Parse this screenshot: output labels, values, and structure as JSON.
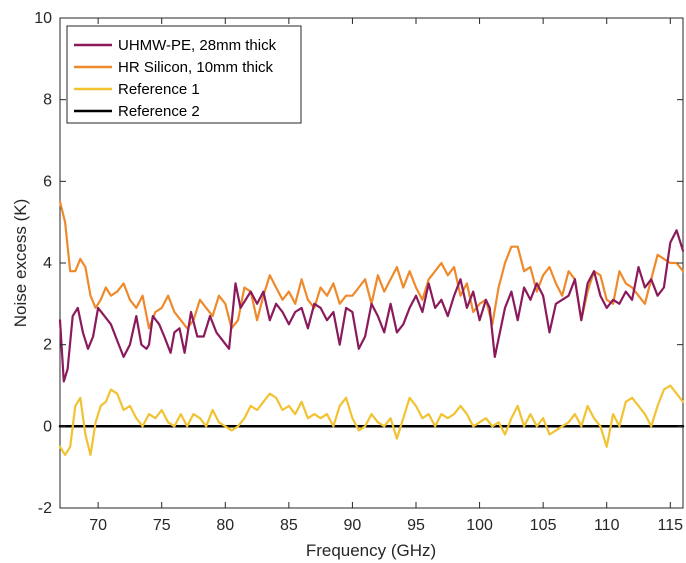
{
  "chart_data": {
    "type": "line",
    "xlabel": "Frequency (GHz)",
    "ylabel": "Noise excess (K)",
    "xlim": [
      67,
      116
    ],
    "ylim": [
      -2,
      10
    ],
    "xticks": [
      70,
      75,
      80,
      85,
      90,
      95,
      100,
      105,
      110,
      115
    ],
    "yticks": [
      -2,
      0,
      2,
      4,
      6,
      8,
      10
    ],
    "xtick_labels": [
      "70",
      "75",
      "80",
      "85",
      "90",
      "95",
      "100",
      "105",
      "110",
      "115"
    ],
    "ytick_labels": [
      "-2",
      "0",
      "2",
      "4",
      "6",
      "8",
      "10"
    ],
    "grid": false,
    "legend_position": "top-left",
    "series": [
      {
        "name": "UHMW-PE, 28mm thick",
        "color": "#8b1a5c",
        "x": [
          67.0,
          67.3,
          67.6,
          68.0,
          68.4,
          68.8,
          69.2,
          69.6,
          70.0,
          70.5,
          71.0,
          71.5,
          72.0,
          72.5,
          73.0,
          73.4,
          73.8,
          74.0,
          74.3,
          74.8,
          75.2,
          75.7,
          76.0,
          76.4,
          76.8,
          77.3,
          77.8,
          78.3,
          78.8,
          79.3,
          79.8,
          80.3,
          80.8,
          81.2,
          81.6,
          82.0,
          82.5,
          83.0,
          83.5,
          84.0,
          84.5,
          85.0,
          85.5,
          86.0,
          86.5,
          87.0,
          87.5,
          88.0,
          88.5,
          89.0,
          89.5,
          90.0,
          90.5,
          91.0,
          91.5,
          92.0,
          92.5,
          93.0,
          93.5,
          94.0,
          94.5,
          95.0,
          95.5,
          96.0,
          96.5,
          97.0,
          97.5,
          98.0,
          98.5,
          99.0,
          99.5,
          100.0,
          100.5,
          100.8,
          101.2,
          101.6,
          102.0,
          102.5,
          103.0,
          103.5,
          104.0,
          104.5,
          105.0,
          105.5,
          106.0,
          106.5,
          107.0,
          107.5,
          108.0,
          108.5,
          109.0,
          109.5,
          110.0,
          110.5,
          111.0,
          111.5,
          112.0,
          112.5,
          113.0,
          113.5,
          114.0,
          114.5,
          115.0,
          115.5,
          116.0
        ],
        "values": [
          2.6,
          1.1,
          1.4,
          2.7,
          2.9,
          2.3,
          1.9,
          2.2,
          2.9,
          2.7,
          2.5,
          2.1,
          1.7,
          2.0,
          2.7,
          2.0,
          1.9,
          2.0,
          2.7,
          2.5,
          2.2,
          1.8,
          2.3,
          2.4,
          1.8,
          2.8,
          2.2,
          2.2,
          2.7,
          2.3,
          2.1,
          1.9,
          3.5,
          2.9,
          3.1,
          3.3,
          3.0,
          3.3,
          2.6,
          3.0,
          2.8,
          2.5,
          2.8,
          2.9,
          2.4,
          3.0,
          2.9,
          2.6,
          2.8,
          2.0,
          2.9,
          2.8,
          1.9,
          2.2,
          3.0,
          2.7,
          2.3,
          3.0,
          2.3,
          2.5,
          2.9,
          3.2,
          2.8,
          3.5,
          2.9,
          3.1,
          2.7,
          3.2,
          3.6,
          2.9,
          3.3,
          2.6,
          3.1,
          2.9,
          1.7,
          2.3,
          2.9,
          3.3,
          2.6,
          3.4,
          3.1,
          3.5,
          3.2,
          2.3,
          3.0,
          3.1,
          3.2,
          3.6,
          2.6,
          3.5,
          3.8,
          3.2,
          2.9,
          3.1,
          3.0,
          3.3,
          3.1,
          3.9,
          3.4,
          3.6,
          3.2,
          3.4,
          4.5,
          4.8,
          4.3
        ]
      },
      {
        "name": "HR Silicon, 10mm thick",
        "color": "#ee8a2b",
        "x": [
          67.0,
          67.4,
          67.8,
          68.2,
          68.6,
          69.0,
          69.4,
          69.8,
          70.2,
          70.6,
          71.0,
          71.5,
          72.0,
          72.5,
          73.0,
          73.5,
          74.0,
          74.5,
          75.0,
          75.5,
          76.0,
          76.5,
          77.0,
          77.5,
          78.0,
          78.5,
          79.0,
          79.5,
          80.0,
          80.5,
          81.0,
          81.5,
          82.0,
          82.5,
          83.0,
          83.5,
          84.0,
          84.5,
          85.0,
          85.5,
          86.0,
          86.5,
          87.0,
          87.5,
          88.0,
          88.5,
          89.0,
          89.5,
          90.0,
          90.5,
          91.0,
          91.5,
          92.0,
          92.5,
          93.0,
          93.5,
          94.0,
          94.5,
          95.0,
          95.5,
          96.0,
          96.5,
          97.0,
          97.5,
          98.0,
          98.5,
          99.0,
          99.5,
          100.0,
          100.5,
          101.0,
          101.5,
          102.0,
          102.5,
          103.0,
          103.5,
          104.0,
          104.5,
          105.0,
          105.5,
          106.0,
          106.5,
          107.0,
          107.5,
          108.0,
          108.5,
          109.0,
          109.5,
          110.0,
          110.5,
          111.0,
          111.5,
          112.0,
          112.5,
          113.0,
          113.5,
          114.0,
          114.5,
          115.0,
          115.5,
          116.0
        ],
        "values": [
          5.5,
          5.0,
          3.8,
          3.8,
          4.1,
          3.9,
          3.2,
          2.9,
          3.1,
          3.4,
          3.2,
          3.3,
          3.5,
          3.1,
          2.9,
          3.2,
          2.4,
          2.8,
          2.9,
          3.2,
          2.8,
          2.6,
          2.4,
          2.6,
          3.1,
          2.9,
          2.7,
          3.2,
          3.0,
          2.4,
          2.6,
          3.4,
          3.3,
          2.6,
          3.2,
          3.7,
          3.4,
          3.1,
          3.3,
          3.0,
          3.6,
          3.1,
          2.9,
          3.4,
          3.2,
          3.5,
          3.0,
          3.2,
          3.2,
          3.4,
          3.6,
          3.0,
          3.7,
          3.3,
          3.6,
          3.9,
          3.4,
          3.8,
          3.4,
          3.1,
          3.6,
          3.8,
          4.0,
          3.7,
          3.9,
          3.2,
          3.5,
          2.8,
          3.0,
          3.1,
          2.5,
          3.4,
          4.0,
          4.4,
          4.4,
          3.8,
          3.9,
          3.3,
          3.7,
          3.9,
          3.5,
          3.2,
          3.8,
          3.6,
          2.6,
          3.3,
          3.8,
          3.7,
          3.1,
          3.0,
          3.8,
          3.5,
          3.4,
          3.2,
          3.0,
          3.6,
          4.2,
          4.1,
          4.0,
          4.0,
          3.8
        ]
      },
      {
        "name": "Reference 1",
        "color": "#f1c232",
        "x": [
          67.0,
          67.4,
          67.8,
          68.2,
          68.6,
          69.0,
          69.4,
          69.8,
          70.2,
          70.6,
          71.0,
          71.5,
          72.0,
          72.5,
          73.0,
          73.5,
          74.0,
          74.5,
          75.0,
          75.5,
          76.0,
          76.5,
          77.0,
          77.5,
          78.0,
          78.5,
          79.0,
          79.5,
          80.0,
          80.5,
          81.0,
          81.5,
          82.0,
          82.5,
          83.0,
          83.5,
          84.0,
          84.5,
          85.0,
          85.5,
          86.0,
          86.5,
          87.0,
          87.5,
          88.0,
          88.5,
          89.0,
          89.5,
          90.0,
          90.5,
          91.0,
          91.5,
          92.0,
          92.5,
          93.0,
          93.5,
          94.0,
          94.5,
          95.0,
          95.5,
          96.0,
          96.5,
          97.0,
          97.5,
          98.0,
          98.5,
          99.0,
          99.5,
          100.0,
          100.5,
          101.0,
          101.5,
          102.0,
          102.5,
          103.0,
          103.5,
          104.0,
          104.5,
          105.0,
          105.5,
          106.0,
          106.5,
          107.0,
          107.5,
          108.0,
          108.5,
          109.0,
          109.5,
          110.0,
          110.5,
          111.0,
          111.5,
          112.0,
          112.5,
          113.0,
          113.5,
          114.0,
          114.5,
          115.0,
          115.5,
          116.0
        ],
        "values": [
          -0.5,
          -0.7,
          -0.5,
          0.5,
          0.7,
          -0.2,
          -0.7,
          0.1,
          0.5,
          0.6,
          0.9,
          0.8,
          0.4,
          0.5,
          0.2,
          0.0,
          0.3,
          0.2,
          0.4,
          0.1,
          0.0,
          0.3,
          0.0,
          0.3,
          0.2,
          0.0,
          0.4,
          0.1,
          0.0,
          -0.1,
          0.0,
          0.2,
          0.5,
          0.4,
          0.6,
          0.8,
          0.7,
          0.4,
          0.5,
          0.3,
          0.6,
          0.2,
          0.3,
          0.2,
          0.3,
          0.0,
          0.5,
          0.7,
          0.2,
          -0.1,
          0.0,
          0.3,
          0.1,
          0.0,
          0.2,
          -0.3,
          0.2,
          0.7,
          0.5,
          0.2,
          0.3,
          0.0,
          0.3,
          0.2,
          0.3,
          0.5,
          0.3,
          0.0,
          0.1,
          0.2,
          0.0,
          0.1,
          -0.2,
          0.2,
          0.5,
          0.0,
          0.3,
          0.0,
          0.2,
          -0.2,
          -0.1,
          0.0,
          0.1,
          0.3,
          0.0,
          0.5,
          0.2,
          0.0,
          -0.5,
          0.3,
          0.0,
          0.6,
          0.7,
          0.5,
          0.3,
          0.0,
          0.5,
          0.9,
          1.0,
          0.8,
          0.6
        ]
      },
      {
        "name": "Reference 2",
        "color": "#000000",
        "x": [
          67,
          116
        ],
        "values": [
          0,
          0
        ]
      }
    ]
  }
}
